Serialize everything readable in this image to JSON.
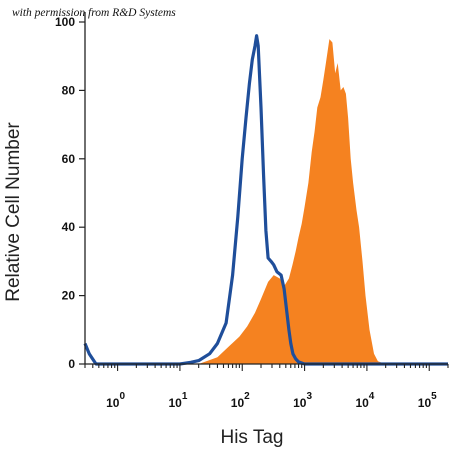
{
  "credit": "with permission from R&D Systems",
  "chart_data": {
    "type": "area",
    "title": "",
    "xlabel": "His Tag",
    "ylabel": "Relative Cell Number",
    "x_scale": "log",
    "xlim": [
      0.3,
      200000
    ],
    "ylim": [
      0,
      100
    ],
    "y_ticks": [
      0,
      20,
      40,
      60,
      80,
      100
    ],
    "x_ticks": [
      {
        "base": "10",
        "exp": "0",
        "value": 1
      },
      {
        "base": "10",
        "exp": "1",
        "value": 10
      },
      {
        "base": "10",
        "exp": "2",
        "value": 100
      },
      {
        "base": "10",
        "exp": "3",
        "value": 1000
      },
      {
        "base": "10",
        "exp": "4",
        "value": 10000
      },
      {
        "base": "10",
        "exp": "5",
        "value": 100000
      }
    ],
    "grid": false,
    "series": [
      {
        "style": "filled",
        "color": "#F58220",
        "x": [
          0.3,
          20,
          40,
          60,
          90,
          120,
          160,
          200,
          260,
          320,
          400,
          480,
          560,
          640,
          720,
          800,
          900,
          1000,
          1150,
          1300,
          1450,
          1600,
          1800,
          2000,
          2200,
          2500,
          2800,
          3100,
          3400,
          3800,
          4200,
          4600,
          5000,
          5500,
          6000,
          6800,
          7500,
          8500,
          9500,
          11000,
          13000,
          15000,
          20000,
          200000
        ],
        "y": [
          0,
          0,
          2,
          5,
          8,
          11,
          15,
          19,
          24,
          26,
          25,
          23,
          25,
          29,
          33,
          37,
          41,
          46,
          53,
          62,
          68,
          75,
          78,
          83,
          88,
          95,
          94,
          85,
          88,
          80,
          81,
          79,
          72,
          60,
          53,
          45,
          40,
          30,
          20,
          10,
          3,
          0.8,
          0,
          0
        ]
      },
      {
        "style": "line",
        "color": "#1F4E9A",
        "x": [
          0.3,
          0.35,
          0.45,
          10,
          15,
          20,
          30,
          40,
          55,
          70,
          85,
          100,
          115,
          130,
          145,
          160,
          170,
          180,
          200,
          220,
          240,
          260,
          290,
          320,
          360,
          420,
          470,
          520,
          560,
          600,
          650,
          720,
          800,
          900,
          1000,
          1200,
          200000
        ],
        "y": [
          6,
          3,
          0,
          0,
          0.5,
          1,
          3,
          6,
          12,
          26,
          43,
          60,
          72,
          82,
          89,
          93,
          96,
          93,
          75,
          55,
          39,
          31,
          30,
          29,
          27,
          26,
          22,
          15,
          10,
          6,
          3,
          1.5,
          0.6,
          0.3,
          0,
          0,
          0
        ]
      }
    ]
  }
}
